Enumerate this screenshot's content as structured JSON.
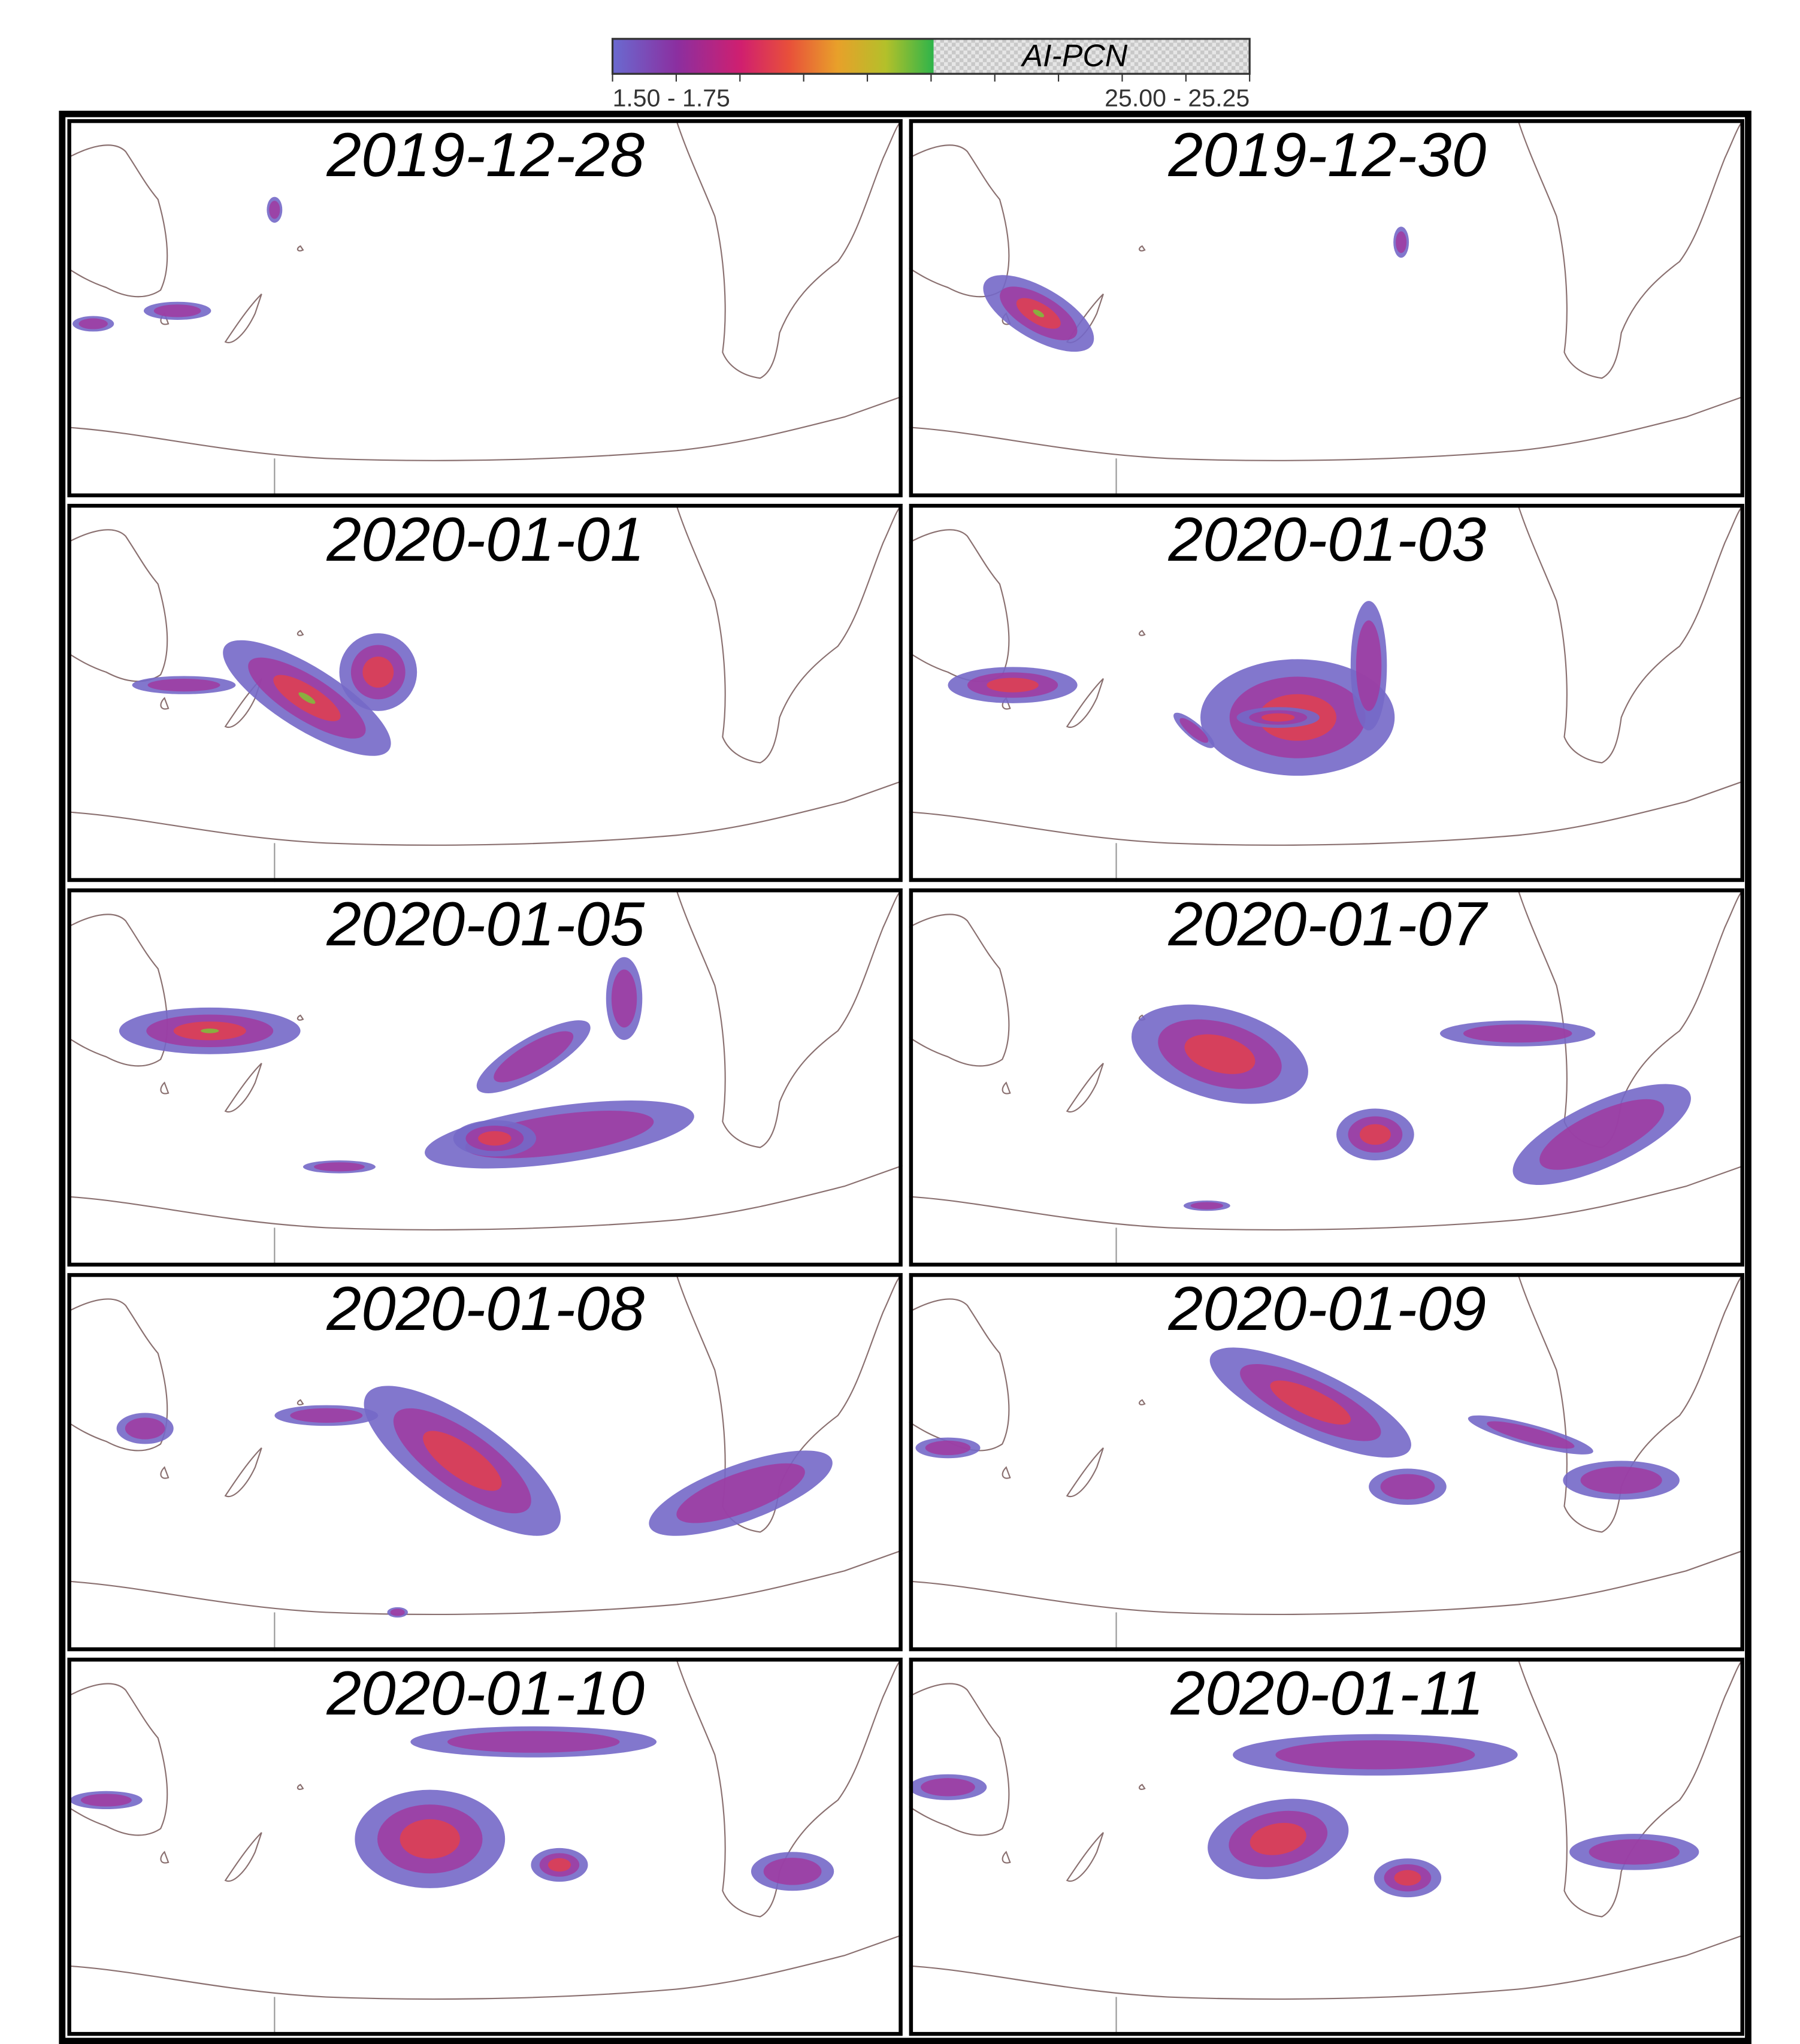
{
  "colorbar": {
    "title": "AI-PCN",
    "min_label": "1.50 - 1.75",
    "max_label": "25.00 - 25.25"
  },
  "panels": [
    {
      "date": "2019-12-28"
    },
    {
      "date": "2019-12-30"
    },
    {
      "date": "2020-01-01"
    },
    {
      "date": "2020-01-03"
    },
    {
      "date": "2020-01-05"
    },
    {
      "date": "2020-01-07"
    },
    {
      "date": "2020-01-08"
    },
    {
      "date": "2020-01-09"
    },
    {
      "date": "2020-01-10"
    },
    {
      "date": "2020-01-11"
    }
  ]
}
